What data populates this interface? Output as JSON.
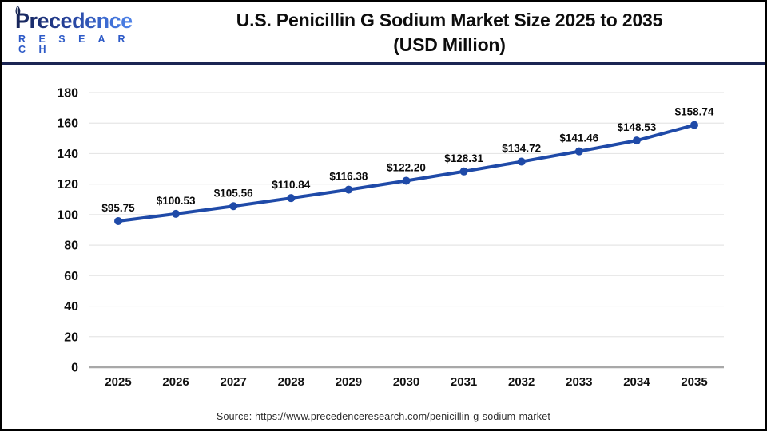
{
  "header": {
    "brand": "Precedence",
    "brand_sub": "R E S E A R C H",
    "title_line1": "U.S. Penicillin G Sodium Market Size 2025 to 2035",
    "title_line2": "(USD Million)"
  },
  "chart_data": {
    "type": "line",
    "title": "U.S. Penicillin G Sodium Market Size 2025 to 2035 (USD Million)",
    "x": [
      2025,
      2026,
      2027,
      2028,
      2029,
      2030,
      2031,
      2032,
      2033,
      2034,
      2035
    ],
    "values": [
      95.75,
      100.53,
      105.56,
      110.84,
      116.38,
      122.2,
      128.31,
      134.72,
      141.46,
      148.53,
      158.74
    ],
    "point_labels": [
      "$95.75",
      "$100.53",
      "$105.56",
      "$110.84",
      "$116.38",
      "$122.20",
      "$128.31",
      "$134.72",
      "$141.46",
      "$148.53",
      "$158.74"
    ],
    "xlabel": "",
    "ylabel": "",
    "ylim": [
      0,
      180
    ],
    "ytick_step": 20,
    "grid": true,
    "legend": false,
    "line_color": "#1f4aa8",
    "marker_color": "#1f4aa8",
    "grid_color": "#e6e6e6",
    "axis_color": "#a8a8a8",
    "label_color": "#111111"
  },
  "footer": {
    "source": "Source: https://www.precedenceresearch.com/penicillin-g-sodium-market"
  }
}
